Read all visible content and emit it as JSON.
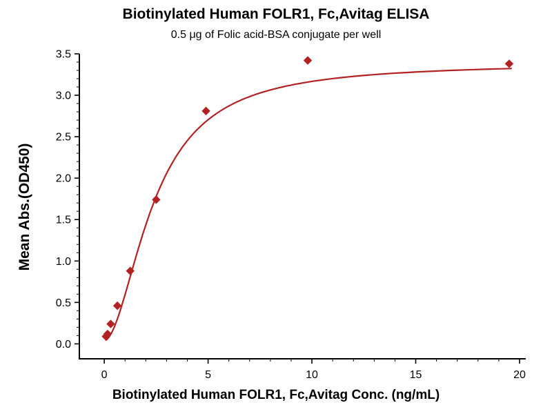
{
  "chart_data": {
    "type": "scatter",
    "title": "Biotinylated Human FOLR1, Fc,Avitag ELISA",
    "subtitle": "0.5 μg of Folic acid-BSA conjugate per well",
    "xlabel": "Biotinylated Human FOLR1, Fc,Avitag Conc. (ng/mL)",
    "ylabel": "Mean Abs.(OD450)",
    "xlim": [
      -1.2,
      20.3
    ],
    "ylim": [
      -0.18,
      3.5
    ],
    "points": {
      "x": [
        0.08,
        0.16,
        0.31,
        0.63,
        1.25,
        2.5,
        4.9,
        9.8,
        19.5
      ],
      "y": [
        0.09,
        0.12,
        0.24,
        0.46,
        0.88,
        1.74,
        2.81,
        3.42,
        3.38
      ]
    },
    "fit_curve": {
      "model": "4PL",
      "bottom": 0.04,
      "top": 3.39,
      "ec50": 2.4,
      "hill": 1.85,
      "x_start": 0.08,
      "x_end": 19.6
    },
    "xticks": {
      "values": [
        0,
        5,
        10,
        15,
        20
      ],
      "labels": [
        "0",
        "5",
        "10",
        "15",
        "20"
      ],
      "minor_step": 1
    },
    "yticks": {
      "values": [
        0,
        0.5,
        1,
        1.5,
        2,
        2.5,
        3,
        3.5
      ],
      "labels": [
        "0.0",
        "0.5",
        "1.0",
        "1.5",
        "2.0",
        "2.5",
        "3.0",
        "3.5"
      ],
      "minor_step": 0.1
    },
    "marker": "diamond",
    "grid": "off",
    "legend": "none",
    "colors": {
      "series": "#B22222",
      "axis": "#000000",
      "text": "#000000",
      "background": "#FFFFFF"
    }
  }
}
